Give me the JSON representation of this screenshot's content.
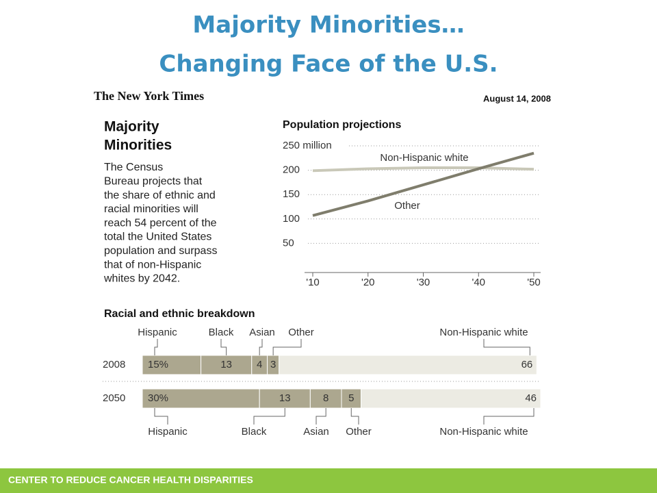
{
  "slide_title": [
    "Majority Minorities…",
    "Changing Face of the U.S."
  ],
  "masthead": "The New York Times",
  "date": "August 14, 2008",
  "headline": [
    "Majority",
    "Minorities"
  ],
  "body": [
    "The Census",
    "Bureau projects that",
    "the share of ethnic and",
    "racial minorities will",
    "reach 54 percent of the",
    "total the United States",
    "population and surpass",
    "that of non-Hispanic",
    "whites by 2042."
  ],
  "footer": "CENTER TO REDUCE CANCER HEALTH DISPARITIES",
  "chart_data": [
    {
      "type": "line",
      "title": "Population projections",
      "x": [
        2010,
        2020,
        2030,
        2040,
        2050
      ],
      "xlim": [
        2010,
        2050
      ],
      "xticks": [
        {
          "value": 2010,
          "label": "'10"
        },
        {
          "value": 2020,
          "label": "'20"
        },
        {
          "value": 2030,
          "label": "'30"
        },
        {
          "value": 2040,
          "label": "'40"
        },
        {
          "value": 2050,
          "label": "'50"
        }
      ],
      "ylim": [
        0,
        250
      ],
      "yticks": [
        50,
        100,
        150,
        200,
        {
          "value": 250,
          "label": "250 million"
        }
      ],
      "grid": true,
      "series": [
        {
          "name": "Non-Hispanic white",
          "color": "#c9c8b8",
          "values": [
            199,
            203,
            205,
            205,
            202
          ]
        },
        {
          "name": "Other",
          "color": "#7f7d6c",
          "values": [
            107,
            137,
            170,
            203,
            235
          ]
        }
      ]
    },
    {
      "type": "stacked_barh",
      "title": "Racial and ethnic breakdown",
      "categories": [
        "2008",
        "2050"
      ],
      "xlim": [
        0,
        102
      ],
      "series": [
        {
          "name": "Hispanic",
          "color": "#aca78f",
          "values": [
            15,
            30
          ],
          "value_labels": [
            "15%",
            "30%"
          ]
        },
        {
          "name": "Black",
          "color": "#aca78f",
          "values": [
            13,
            13
          ]
        },
        {
          "name": "Asian",
          "color": "#aca78f",
          "values": [
            4,
            8
          ]
        },
        {
          "name": "Other",
          "color": "#aca78f",
          "values": [
            3,
            5
          ]
        },
        {
          "name": "Non-Hispanic white",
          "color": "#ecebe3",
          "values": [
            66,
            46
          ]
        }
      ]
    }
  ]
}
